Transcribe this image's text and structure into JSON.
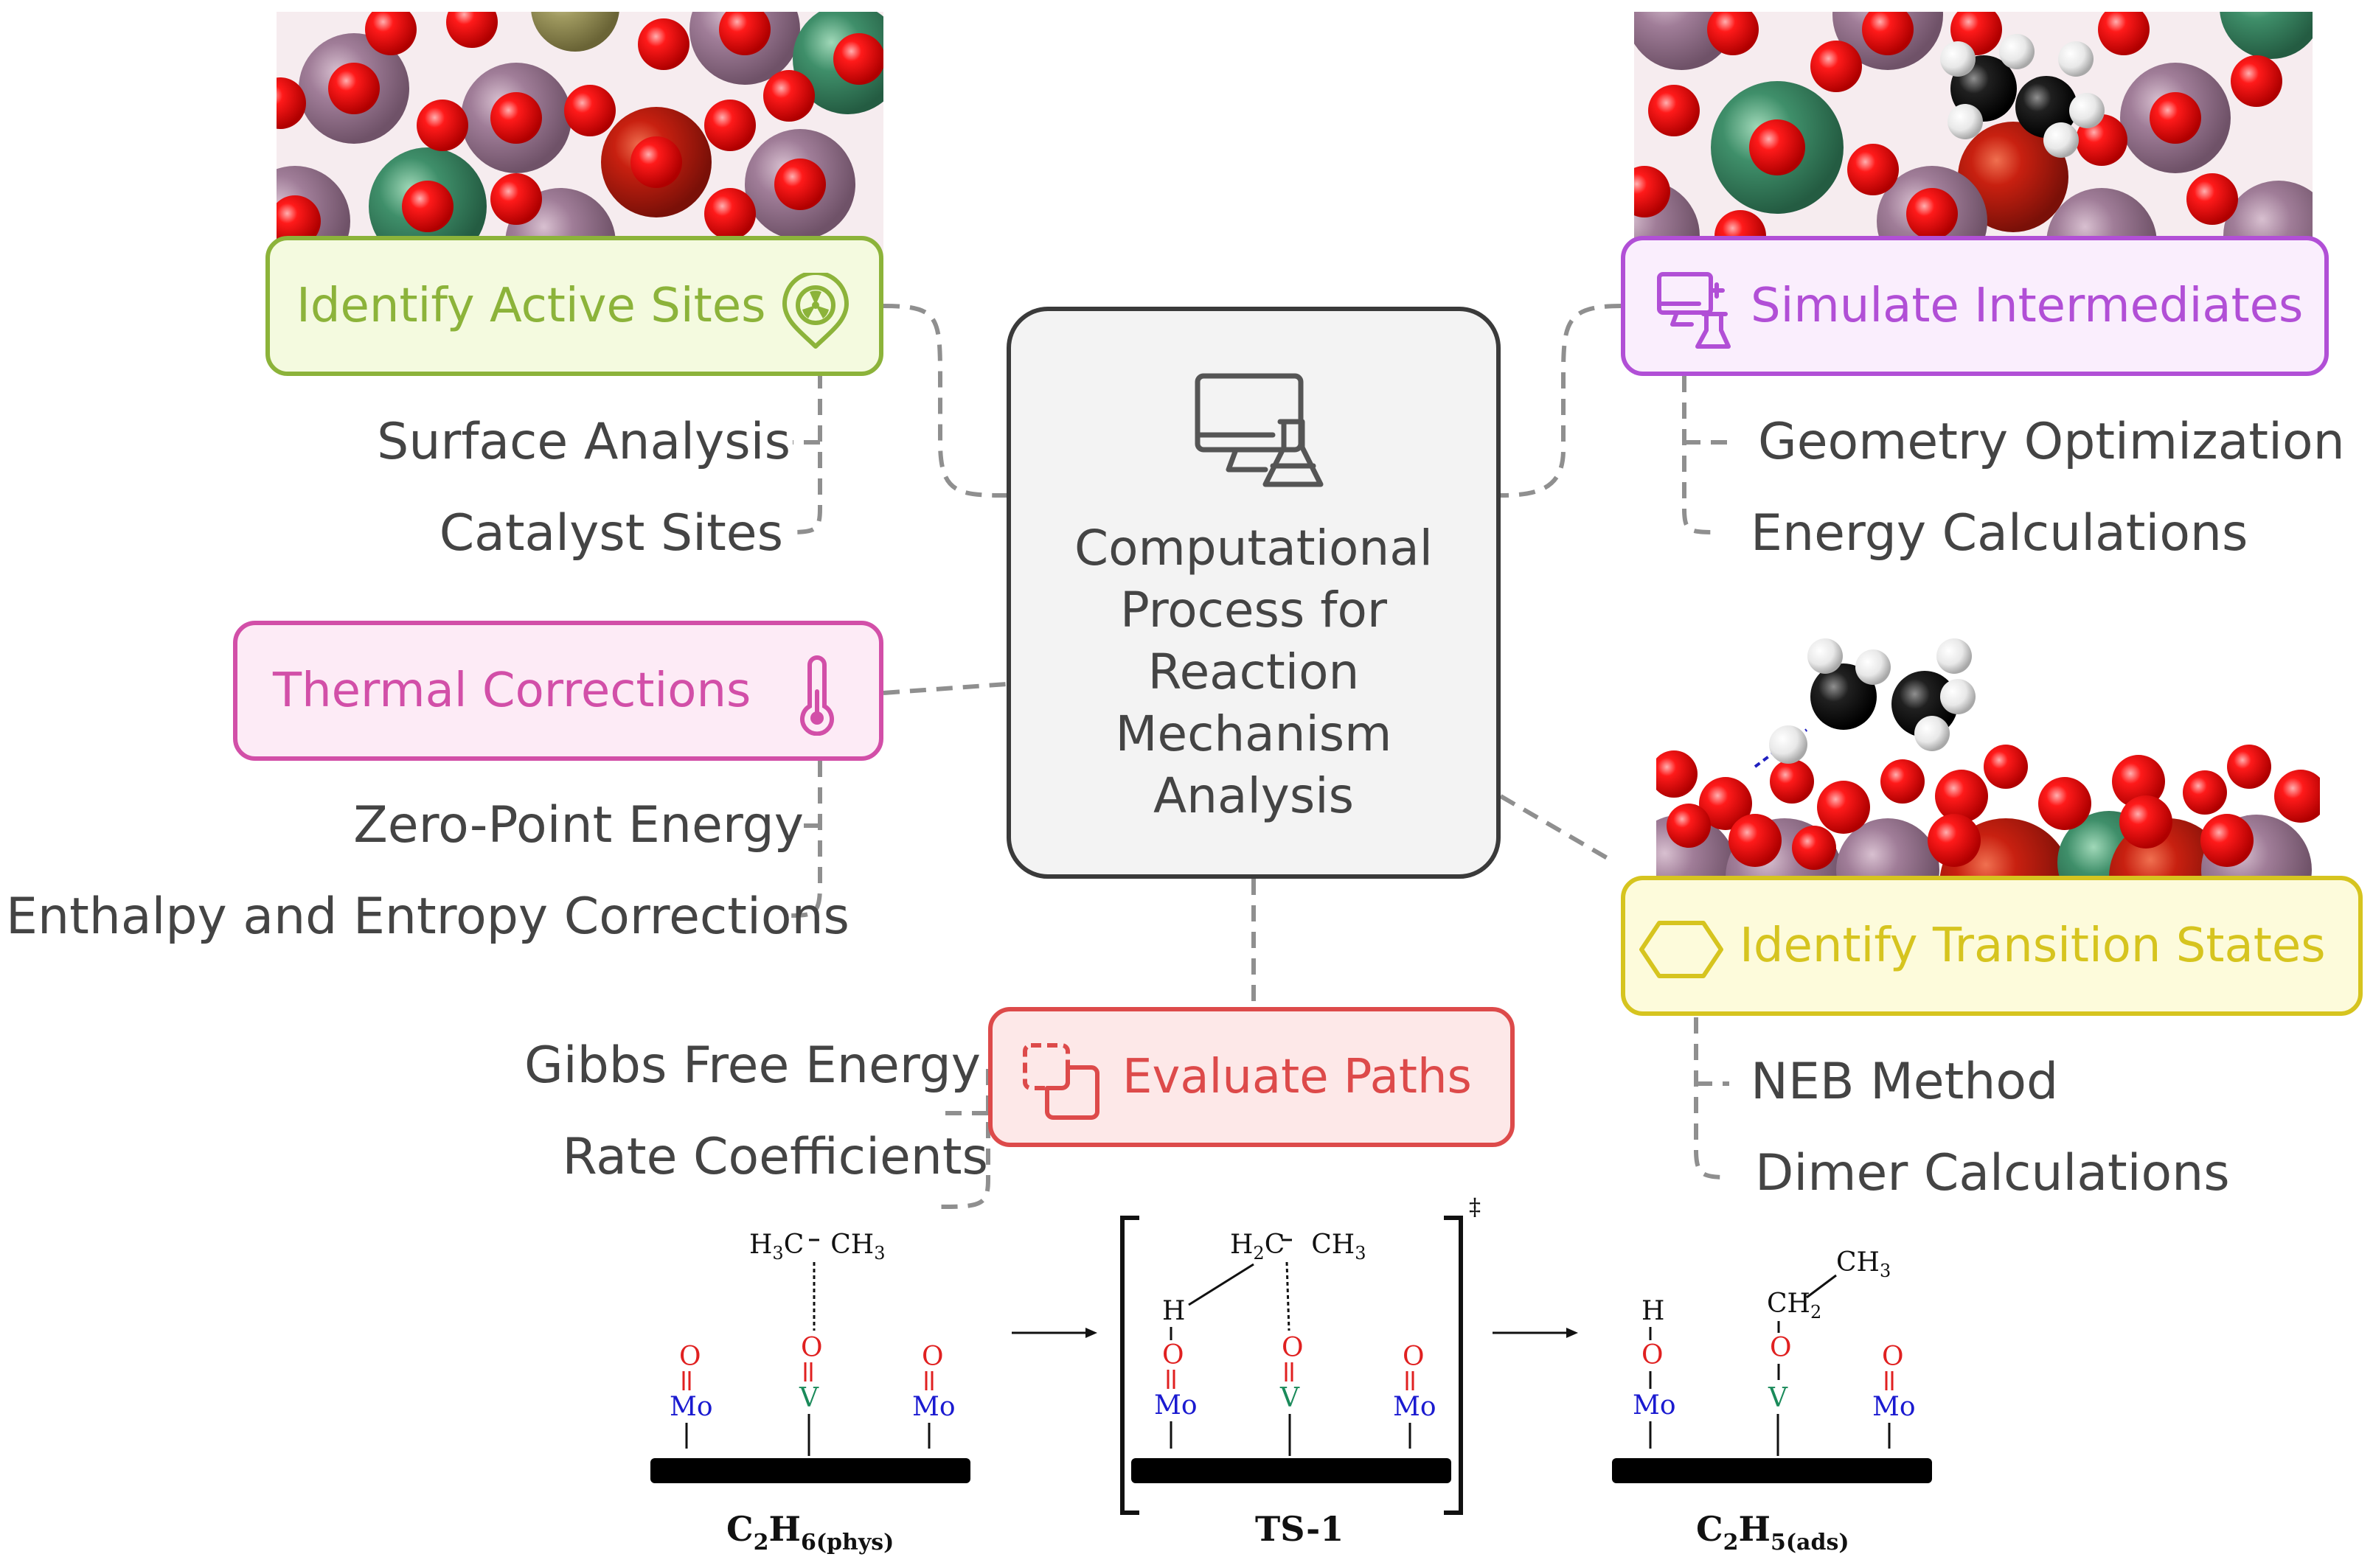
{
  "center": {
    "title_lines": [
      "Computational",
      "Process for",
      "Reaction",
      "Mechanism",
      "Analysis"
    ],
    "icon": "computer-flask-icon"
  },
  "nodes": {
    "active_sites": {
      "label": "Identify Active Sites",
      "icon": "hazard-badge-icon",
      "color": "#8cb33a",
      "items": [
        "Surface Analysis",
        "Catalyst Sites"
      ]
    },
    "intermediates": {
      "label": "Simulate Intermediates",
      "icon": "computer-flask-icon",
      "color": "#b14fd6",
      "items": [
        "Geometry Optimization",
        "Energy Calculations"
      ]
    },
    "thermal": {
      "label": "Thermal Corrections",
      "icon": "thermometer-icon",
      "color": "#d24fa8",
      "items": [
        "Zero-Point Energy",
        "Enthalpy and Entropy Corrections"
      ]
    },
    "transition": {
      "label": "Identify Transition States",
      "icon": "hexagon-icon",
      "color": "#d6c41f",
      "items": [
        "NEB Method",
        "Dimer Calculations"
      ]
    },
    "paths": {
      "label": "Evaluate Paths",
      "icon": "dashed-squares-icon",
      "color": "#dd4a4a",
      "items": [
        "Gibbs Free Energy",
        "Rate Coefficients"
      ]
    }
  },
  "scheme": {
    "states": [
      {
        "name": "C2H6(phys)",
        "label_main": "C",
        "label_sub1": "2",
        "label_mid": "H",
        "label_sub2": "6(phys)",
        "molecule": [
          "H",
          "3",
          "C",
          "CH",
          "3"
        ]
      },
      {
        "name": "TS-1",
        "label_main": "TS-1",
        "molecule": [
          "H",
          "2",
          "C",
          "CH",
          "3"
        ],
        "hydrogen": "H",
        "dagger": "‡"
      },
      {
        "name": "C2H5(ads)",
        "label_main": "C",
        "label_sub1": "2",
        "label_mid": "H",
        "label_sub2": "5(ads)",
        "molecule": [
          "CH",
          "3",
          "CH",
          "2"
        ],
        "hydrogen": "H"
      }
    ],
    "atoms": {
      "oxygen": "O",
      "molybdenum": "Mo",
      "vanadium": "V"
    },
    "colors": {
      "oxygen": "#e02020",
      "molybdenum": "#1a1ad0",
      "vanadium": "#1a8a5a"
    }
  }
}
